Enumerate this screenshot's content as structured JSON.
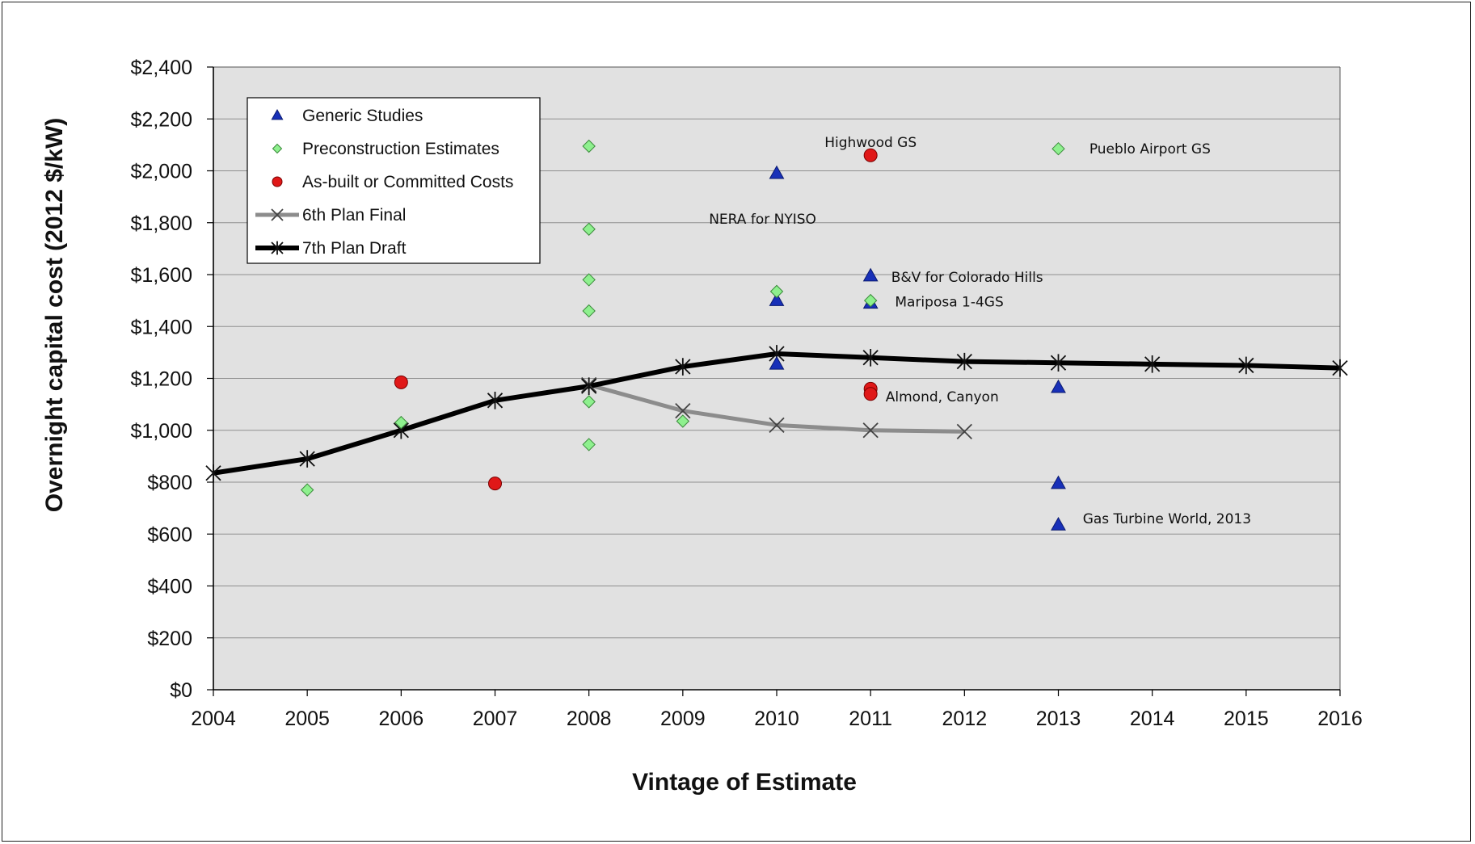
{
  "chart_data": {
    "type": "scatter",
    "xlabel": "Vintage of Estimate",
    "ylabel": "Overnight capital cost (2012 $/kW)",
    "xlim": [
      2004,
      2016
    ],
    "ylim": [
      0,
      2400
    ],
    "x_ticks": [
      "2004",
      "2005",
      "2006",
      "2007",
      "2008",
      "2009",
      "2010",
      "2011",
      "2012",
      "2013",
      "2014",
      "2015",
      "2016"
    ],
    "y_ticks": [
      "$0",
      "$200",
      "$400",
      "$600",
      "$800",
      "$1,000",
      "$1,200",
      "$1,400",
      "$1,600",
      "$1,800",
      "$2,000",
      "$2,200",
      "$2,400"
    ],
    "grid": "horizontal",
    "legend_position": "top-left",
    "colors": {
      "plot_bg": "#e1e1e1",
      "generic": "#1830b8",
      "precon": "#8ef08e",
      "asbuilt": "#e01818",
      "sixth": "#8c8c8c",
      "seventh": "#000000"
    },
    "series": [
      {
        "name": "Generic Studies",
        "kind": "markers",
        "marker": "triangle",
        "points": [
          [
            2010,
            1990
          ],
          [
            2010,
            1500
          ],
          [
            2010,
            1255
          ],
          [
            2011,
            1595
          ],
          [
            2011,
            1490
          ],
          [
            2013,
            1165
          ],
          [
            2013,
            795
          ],
          [
            2013,
            635
          ]
        ]
      },
      {
        "name": "Preconstruction Estimates",
        "kind": "markers",
        "marker": "diamond",
        "points": [
          [
            2005,
            770
          ],
          [
            2006,
            1030
          ],
          [
            2008,
            2095
          ],
          [
            2008,
            1775
          ],
          [
            2008,
            1580
          ],
          [
            2008,
            1460
          ],
          [
            2008,
            1110
          ],
          [
            2008,
            945
          ],
          [
            2009,
            1035
          ],
          [
            2010,
            1535
          ],
          [
            2011,
            1500
          ],
          [
            2013,
            2085
          ]
        ]
      },
      {
        "name": "As-built or Committed Costs",
        "kind": "markers",
        "marker": "circle",
        "points": [
          [
            2006,
            1185
          ],
          [
            2007,
            795
          ],
          [
            2011,
            2060
          ],
          [
            2011,
            1160
          ],
          [
            2011,
            1140
          ]
        ]
      },
      {
        "name": "6th Plan Final",
        "kind": "line",
        "marker": "x",
        "points": [
          [
            2008,
            1175
          ],
          [
            2009,
            1075
          ],
          [
            2010,
            1020
          ],
          [
            2011,
            1000
          ],
          [
            2012,
            995
          ]
        ]
      },
      {
        "name": "7th Plan Draft",
        "kind": "line",
        "marker": "star",
        "points": [
          [
            2004,
            835
          ],
          [
            2005,
            890
          ],
          [
            2006,
            1000
          ],
          [
            2007,
            1115
          ],
          [
            2008,
            1170
          ],
          [
            2009,
            1245
          ],
          [
            2010,
            1295
          ],
          [
            2011,
            1280
          ],
          [
            2012,
            1265
          ],
          [
            2013,
            1260
          ],
          [
            2014,
            1255
          ],
          [
            2015,
            1250
          ],
          [
            2016,
            1240
          ]
        ]
      }
    ],
    "annotations": [
      {
        "text": "Highwood GS",
        "x": 2011,
        "y": 2110,
        "anchor": "middle"
      },
      {
        "text": "Pueblo Airport GS",
        "x": 2013.33,
        "y": 2085,
        "anchor": "start"
      },
      {
        "text": "NERA for NYISO",
        "x": 2009.85,
        "y": 1815,
        "anchor": "middle"
      },
      {
        "text": "B&V for Colorado Hills",
        "x": 2011.22,
        "y": 1590,
        "anchor": "start"
      },
      {
        "text": "Mariposa 1-4GS",
        "x": 2011.26,
        "y": 1495,
        "anchor": "start"
      },
      {
        "text": "Almond, Canyon",
        "x": 2011.16,
        "y": 1130,
        "anchor": "start"
      },
      {
        "text": "Gas Turbine World, 2013",
        "x": 2013.26,
        "y": 660,
        "anchor": "start"
      }
    ]
  }
}
